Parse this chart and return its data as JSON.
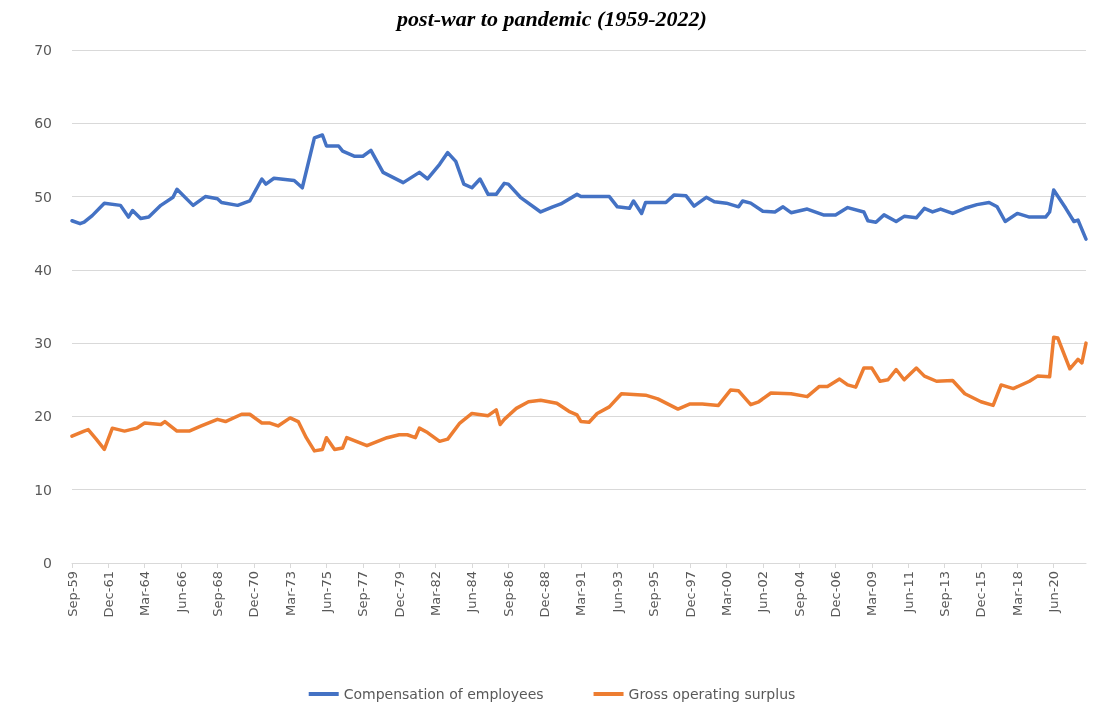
{
  "chart_data": {
    "type": "line",
    "title": "post-war to pandemic (1959-2022)",
    "xlim": [
      "1959-09",
      "2022-06"
    ],
    "xticks": [
      {
        "value": "1959-09",
        "label": "Sep-59"
      },
      {
        "value": "1961-12",
        "label": "Dec-61"
      },
      {
        "value": "1964-03",
        "label": "Mar-64"
      },
      {
        "value": "1966-06",
        "label": "Jun-66"
      },
      {
        "value": "1968-09",
        "label": "Sep-68"
      },
      {
        "value": "1970-12",
        "label": "Dec-70"
      },
      {
        "value": "1973-03",
        "label": "Mar-73"
      },
      {
        "value": "1975-06",
        "label": "Jun-75"
      },
      {
        "value": "1977-09",
        "label": "Sep-77"
      },
      {
        "value": "1979-12",
        "label": "Dec-79"
      },
      {
        "value": "1982-03",
        "label": "Mar-82"
      },
      {
        "value": "1984-06",
        "label": "Jun-84"
      },
      {
        "value": "1986-09",
        "label": "Sep-86"
      },
      {
        "value": "1988-12",
        "label": "Dec-88"
      },
      {
        "value": "1991-03",
        "label": "Mar-91"
      },
      {
        "value": "1993-06",
        "label": "Jun-93"
      },
      {
        "value": "1995-09",
        "label": "Sep-95"
      },
      {
        "value": "1997-12",
        "label": "Dec-97"
      },
      {
        "value": "2000-03",
        "label": "Mar-00"
      },
      {
        "value": "2002-06",
        "label": "Jun-02"
      },
      {
        "value": "2004-09",
        "label": "Sep-04"
      },
      {
        "value": "2006-12",
        "label": "Dec-06"
      },
      {
        "value": "2009-03",
        "label": "Mar-09"
      },
      {
        "value": "2011-06",
        "label": "Jun-11"
      },
      {
        "value": "2013-09",
        "label": "Sep-13"
      },
      {
        "value": "2015-12",
        "label": "Dec-15"
      },
      {
        "value": "2018-03",
        "label": "Mar-18"
      },
      {
        "value": "2020-06",
        "label": "Jun-20"
      }
    ],
    "ylim": [
      0,
      70
    ],
    "yticks": [
      0,
      10,
      20,
      30,
      40,
      50,
      60,
      70
    ],
    "grid": "y",
    "legend": "bottom",
    "line_style": "solid",
    "series": [
      {
        "name": "Compensation of employees",
        "color": "#4472c4",
        "x": [
          "1959-09",
          "1960-03",
          "1960-06",
          "1960-12",
          "1961-09",
          "1962-09",
          "1963-03",
          "1963-06",
          "1963-12",
          "1964-06",
          "1965-03",
          "1965-12",
          "1966-03",
          "1967-03",
          "1967-12",
          "1968-09",
          "1968-12",
          "1969-12",
          "1970-09",
          "1971-06",
          "1971-09",
          "1972-03",
          "1973-06",
          "1973-12",
          "1974-09",
          "1975-03",
          "1975-06",
          "1976-03",
          "1976-06",
          "1977-03",
          "1977-09",
          "1978-03",
          "1978-12",
          "1980-03",
          "1981-03",
          "1981-09",
          "1982-06",
          "1982-12",
          "1983-06",
          "1983-12",
          "1984-06",
          "1984-12",
          "1985-06",
          "1985-12",
          "1986-06",
          "1986-09",
          "1987-06",
          "1988-09",
          "1989-06",
          "1989-12",
          "1990-12",
          "1991-03",
          "1992-12",
          "1993-06",
          "1994-03",
          "1994-06",
          "1994-12",
          "1995-03",
          "1996-06",
          "1996-12",
          "1997-09",
          "1998-03",
          "1998-12",
          "1999-06",
          "2000-03",
          "2000-12",
          "2001-03",
          "2001-09",
          "2002-06",
          "2003-03",
          "2003-09",
          "2004-03",
          "2005-03",
          "2006-03",
          "2006-12",
          "2007-09",
          "2008-09",
          "2008-12",
          "2009-06",
          "2009-12",
          "2010-09",
          "2011-03",
          "2011-12",
          "2012-06",
          "2012-12",
          "2013-06",
          "2014-03",
          "2014-12",
          "2015-09",
          "2016-06",
          "2016-12",
          "2017-06",
          "2018-03",
          "2018-12",
          "2019-12",
          "2020-03",
          "2020-06",
          "2021-03",
          "2021-09",
          "2021-12",
          "2022-06"
        ],
        "values": [
          46.7,
          46.3,
          46.5,
          47.4,
          49.1,
          48.8,
          47.2,
          48.1,
          47.0,
          47.2,
          48.8,
          49.9,
          51.0,
          48.8,
          50.0,
          49.7,
          49.2,
          48.8,
          49.4,
          52.4,
          51.7,
          52.5,
          52.2,
          51.2,
          58.0,
          58.4,
          56.9,
          56.9,
          56.2,
          55.5,
          55.5,
          56.3,
          53.3,
          51.9,
          53.3,
          52.4,
          54.4,
          56.0,
          54.8,
          51.7,
          51.2,
          52.4,
          50.3,
          50.3,
          51.8,
          51.7,
          49.9,
          47.9,
          48.6,
          49.0,
          50.3,
          50.0,
          50.0,
          48.6,
          48.4,
          49.4,
          47.7,
          49.2,
          49.2,
          50.2,
          50.1,
          48.7,
          49.9,
          49.3,
          49.1,
          48.6,
          49.4,
          49.1,
          48.0,
          47.9,
          48.6,
          47.8,
          48.3,
          47.5,
          47.5,
          48.5,
          47.9,
          46.7,
          46.5,
          47.5,
          46.6,
          47.3,
          47.1,
          48.4,
          47.9,
          48.3,
          47.7,
          48.4,
          48.9,
          49.2,
          48.6,
          46.6,
          47.7,
          47.2,
          47.2,
          47.9,
          50.9,
          48.4,
          46.6,
          46.8,
          44.2
        ]
      },
      {
        "name": "Gross operating surplus",
        "color": "#ed7d31",
        "x": [
          "1959-09",
          "1960-06",
          "1960-09",
          "1961-03",
          "1961-09",
          "1962-03",
          "1962-12",
          "1963-09",
          "1964-03",
          "1965-03",
          "1965-06",
          "1966-03",
          "1966-12",
          "1967-09",
          "1968-09",
          "1969-03",
          "1970-03",
          "1970-09",
          "1971-06",
          "1971-12",
          "1972-06",
          "1973-03",
          "1973-09",
          "1974-03",
          "1974-09",
          "1975-03",
          "1975-06",
          "1975-12",
          "1976-06",
          "1976-09",
          "1977-12",
          "1979-03",
          "1979-12",
          "1980-06",
          "1980-12",
          "1981-03",
          "1981-09",
          "1982-06",
          "1982-12",
          "1983-09",
          "1984-06",
          "1985-06",
          "1985-12",
          "1986-03",
          "1986-06",
          "1987-03",
          "1987-12",
          "1988-09",
          "1989-09",
          "1990-06",
          "1990-12",
          "1991-03",
          "1991-09",
          "1992-03",
          "1992-12",
          "1993-09",
          "1994-06",
          "1995-03",
          "1995-12",
          "1997-03",
          "1997-12",
          "1998-09",
          "1999-09",
          "2000-06",
          "2000-12",
          "2001-09",
          "2002-03",
          "2002-12",
          "2004-03",
          "2005-03",
          "2005-12",
          "2006-06",
          "2007-03",
          "2007-09",
          "2008-03",
          "2008-09",
          "2009-03",
          "2009-09",
          "2010-03",
          "2010-09",
          "2011-03",
          "2011-12",
          "2012-06",
          "2013-03",
          "2014-03",
          "2014-12",
          "2015-12",
          "2016-09",
          "2017-03",
          "2017-12",
          "2018-12",
          "2019-06",
          "2020-03",
          "2020-06",
          "2020-09",
          "2021-06",
          "2021-12",
          "2022-03",
          "2022-06"
        ],
        "values": [
          17.3,
          18.0,
          18.2,
          16.9,
          15.5,
          18.4,
          18.0,
          18.4,
          19.1,
          18.9,
          19.3,
          18.0,
          18.0,
          18.7,
          19.6,
          19.3,
          20.3,
          20.3,
          19.1,
          19.1,
          18.7,
          19.8,
          19.3,
          17.1,
          15.3,
          15.5,
          17.1,
          15.5,
          15.7,
          17.1,
          16.0,
          17.1,
          17.5,
          17.5,
          17.1,
          18.4,
          17.8,
          16.6,
          16.9,
          19.1,
          20.4,
          20.1,
          20.9,
          18.9,
          19.6,
          21.1,
          22.0,
          22.2,
          21.8,
          20.7,
          20.2,
          19.3,
          19.2,
          20.4,
          21.3,
          23.1,
          23.0,
          22.9,
          22.4,
          21.0,
          21.7,
          21.7,
          21.5,
          23.6,
          23.5,
          21.6,
          22.0,
          23.2,
          23.1,
          22.7,
          24.1,
          24.1,
          25.1,
          24.3,
          24.0,
          26.6,
          26.6,
          24.8,
          25.0,
          26.4,
          25.0,
          26.6,
          25.5,
          24.8,
          24.9,
          23.1,
          22.0,
          21.5,
          24.3,
          23.8,
          24.8,
          25.5,
          25.4,
          30.8,
          30.7,
          26.5,
          27.8,
          27.3,
          30.0
        ]
      }
    ]
  }
}
